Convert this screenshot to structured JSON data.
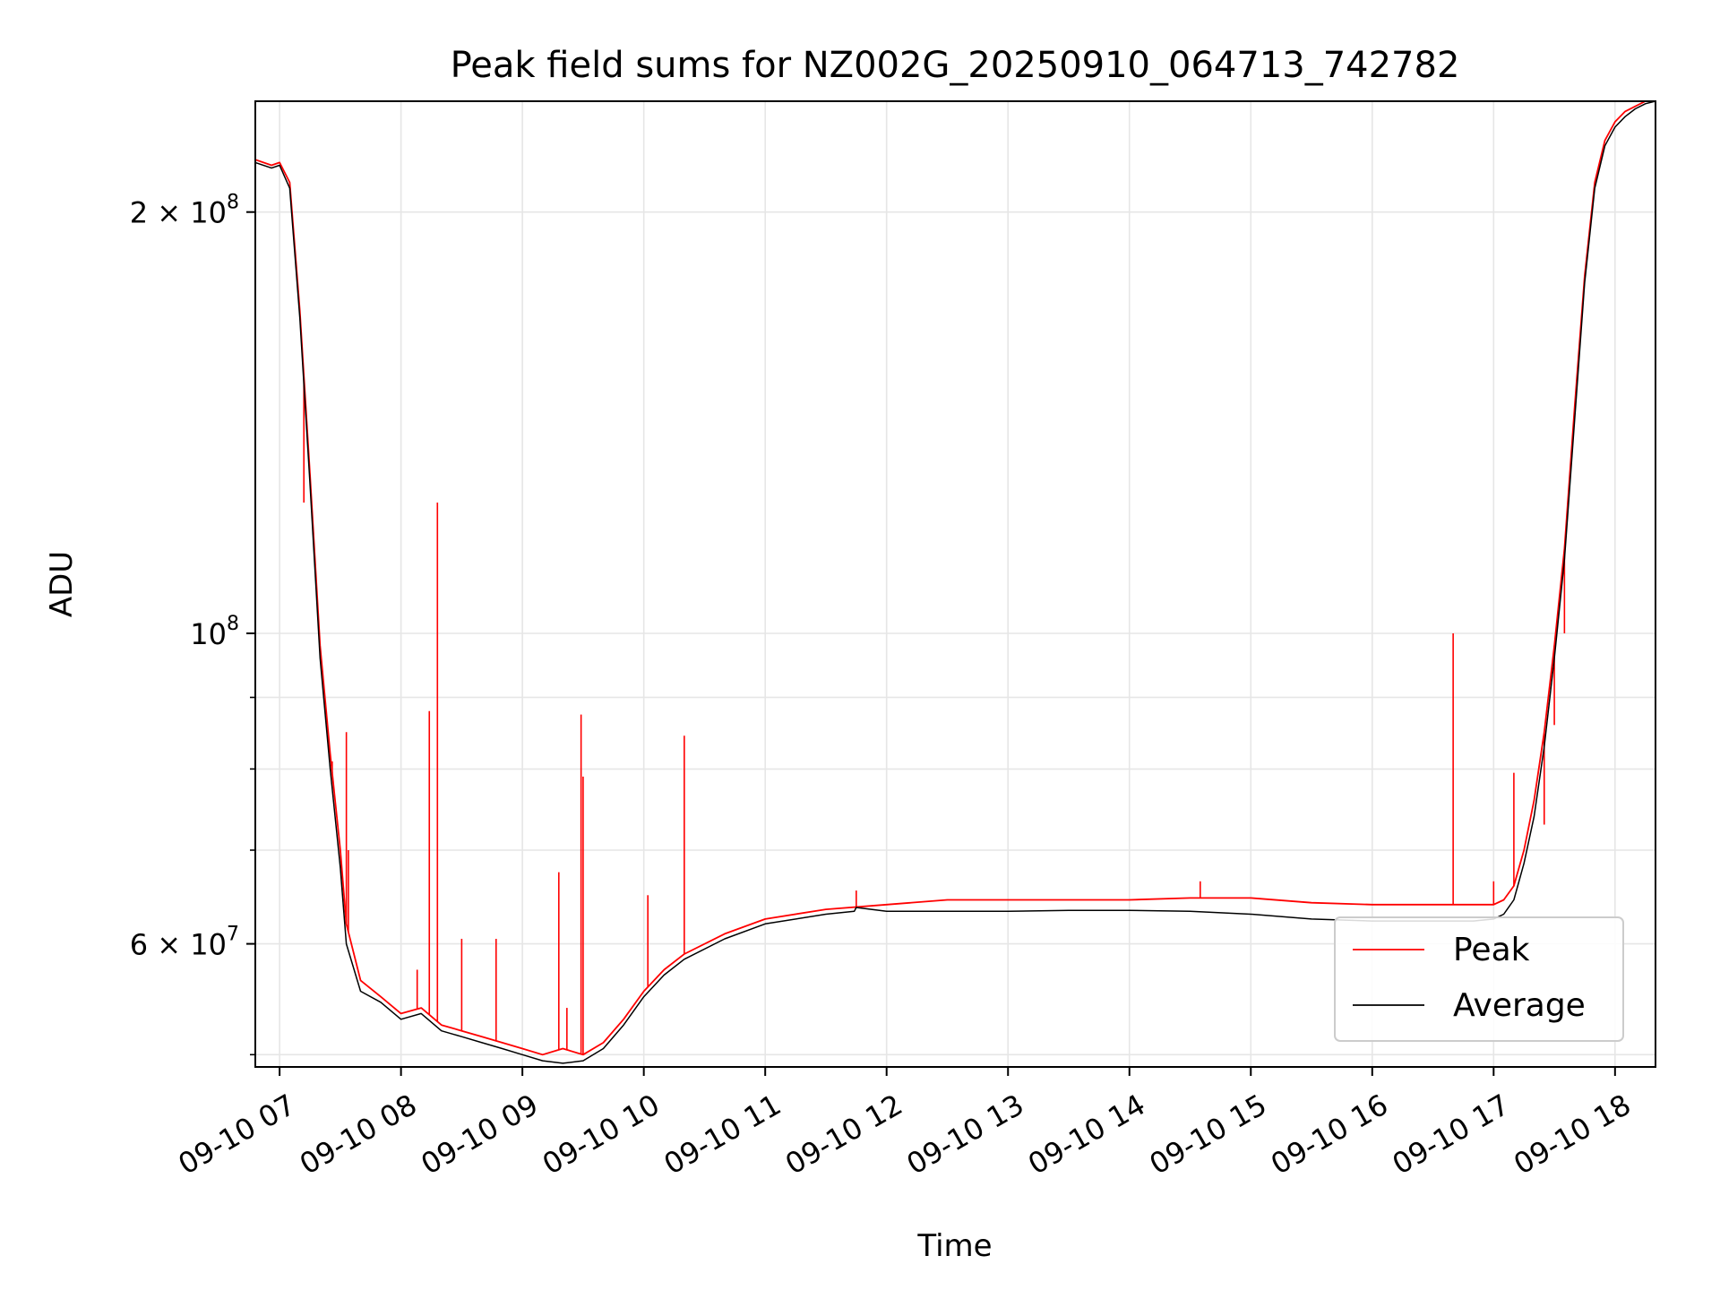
{
  "chart_data": {
    "type": "line",
    "title": "Peak field sums for NZ002G_20250910_064713_742782",
    "xlabel": "Time",
    "ylabel": "ADU",
    "y_scale": "log",
    "grid": true,
    "legend_position": "lower-right",
    "xlim": [
      "09-10 06:48",
      "09-10 18:20"
    ],
    "ylim": [
      49000000,
      240000000
    ],
    "x_ticks": [
      "09-10 07",
      "09-10 08",
      "09-10 09",
      "09-10 10",
      "09-10 11",
      "09-10 12",
      "09-10 13",
      "09-10 14",
      "09-10 15",
      "09-10 16",
      "09-10 17",
      "09-10 18"
    ],
    "y_ticks_major": [
      {
        "value": 200000000,
        "label": "2 × 10^8"
      },
      {
        "value": 100000000,
        "label": "10^8"
      },
      {
        "value": 60000000,
        "label": "6 × 10^7"
      }
    ],
    "y_ticks_minor": [
      50000000,
      70000000,
      80000000,
      90000000
    ],
    "series": [
      {
        "name": "Peak",
        "color": "#ff0000",
        "x": [
          "06:48",
          "06:56",
          "07:00",
          "07:05",
          "07:10",
          "07:15",
          "07:20",
          "07:25",
          "07:30",
          "07:33",
          "07:40",
          "07:50",
          "08:00",
          "08:10",
          "08:20",
          "08:30",
          "08:40",
          "08:50",
          "09:00",
          "09:10",
          "09:20",
          "09:30",
          "09:40",
          "09:50",
          "10:00",
          "10:10",
          "10:20",
          "10:40",
          "11:00",
          "11:30",
          "12:00",
          "12:30",
          "13:00",
          "13:30",
          "14:00",
          "14:30",
          "15:00",
          "15:30",
          "16:00",
          "16:30",
          "16:50",
          "17:00",
          "17:05",
          "17:10",
          "17:15",
          "17:20",
          "17:25",
          "17:30",
          "17:35",
          "17:40",
          "17:45",
          "17:50",
          "17:55",
          "18:00",
          "18:05",
          "18:10",
          "18:15",
          "18:20"
        ],
        "values": [
          218000000,
          216000000,
          217000000,
          210000000,
          170000000,
          130000000,
          98000000,
          82000000,
          70000000,
          62000000,
          56500000,
          55000000,
          53500000,
          54000000,
          52500000,
          52000000,
          51500000,
          51000000,
          50500000,
          50000000,
          50500000,
          50000000,
          51000000,
          53000000,
          55500000,
          57500000,
          59000000,
          61000000,
          62500000,
          63500000,
          64000000,
          64500000,
          64500000,
          64500000,
          64500000,
          64700000,
          64700000,
          64200000,
          64000000,
          64000000,
          64000000,
          64000000,
          64500000,
          66000000,
          70000000,
          76000000,
          85000000,
          98000000,
          115000000,
          145000000,
          180000000,
          210000000,
          225000000,
          232000000,
          236000000,
          238000000,
          240000000,
          241000000
        ],
        "spikes": [
          {
            "x": "07:12",
            "value": 124000000
          },
          {
            "x": "07:26",
            "value": 81000000
          },
          {
            "x": "07:30",
            "value": 70000000
          },
          {
            "x": "07:33",
            "value": 85000000
          },
          {
            "x": "07:34",
            "value": 70000000
          },
          {
            "x": "08:08",
            "value": 57500000
          },
          {
            "x": "08:14",
            "value": 88000000
          },
          {
            "x": "08:18",
            "value": 124000000
          },
          {
            "x": "08:30",
            "value": 60500000
          },
          {
            "x": "08:47",
            "value": 60500000
          },
          {
            "x": "09:18",
            "value": 67500000
          },
          {
            "x": "09:22",
            "value": 54000000
          },
          {
            "x": "09:29",
            "value": 87500000
          },
          {
            "x": "09:30",
            "value": 79000000
          },
          {
            "x": "10:02",
            "value": 65000000
          },
          {
            "x": "10:20",
            "value": 84500000
          },
          {
            "x": "11:45",
            "value": 65500000
          },
          {
            "x": "14:35",
            "value": 66500000
          },
          {
            "x": "16:40",
            "value": 100000000
          },
          {
            "x": "17:00",
            "value": 66500000
          },
          {
            "x": "17:10",
            "value": 79500000
          },
          {
            "x": "17:20",
            "value": 76000000
          },
          {
            "x": "17:25",
            "value": 73000000
          },
          {
            "x": "17:30",
            "value": 86000000
          },
          {
            "x": "17:35",
            "value": 100000000
          }
        ]
      },
      {
        "name": "Average",
        "color": "#000000",
        "x": [
          "06:48",
          "06:56",
          "07:00",
          "07:05",
          "07:10",
          "07:15",
          "07:20",
          "07:25",
          "07:30",
          "07:33",
          "07:40",
          "07:50",
          "08:00",
          "08:10",
          "08:20",
          "08:30",
          "08:40",
          "08:50",
          "09:00",
          "09:10",
          "09:20",
          "09:30",
          "09:40",
          "09:50",
          "10:00",
          "10:10",
          "10:20",
          "10:40",
          "11:00",
          "11:30",
          "11:44",
          "11:45",
          "12:00",
          "12:30",
          "13:00",
          "13:30",
          "14:00",
          "14:30",
          "15:00",
          "15:30",
          "16:00",
          "16:30",
          "16:50",
          "17:00",
          "17:05",
          "17:10",
          "17:15",
          "17:20",
          "17:25",
          "17:30",
          "17:35",
          "17:40",
          "17:45",
          "17:50",
          "17:55",
          "18:00",
          "18:05",
          "18:10",
          "18:15",
          "18:20"
        ],
        "values": [
          217000000,
          215000000,
          216000000,
          208000000,
          168000000,
          128000000,
          96000000,
          80000000,
          68000000,
          60000000,
          55500000,
          54500000,
          53000000,
          53500000,
          52000000,
          51500000,
          51000000,
          50500000,
          50000000,
          49500000,
          49300000,
          49500000,
          50500000,
          52500000,
          55000000,
          57000000,
          58500000,
          60500000,
          62000000,
          63000000,
          63300000,
          63700000,
          63300000,
          63300000,
          63300000,
          63400000,
          63400000,
          63300000,
          63000000,
          62500000,
          62300000,
          62300000,
          62300000,
          62500000,
          63000000,
          64500000,
          68500000,
          74000000,
          83000000,
          96000000,
          113000000,
          142000000,
          178000000,
          208000000,
          223000000,
          230000000,
          234000000,
          237000000,
          239000000,
          240000000
        ]
      }
    ]
  }
}
